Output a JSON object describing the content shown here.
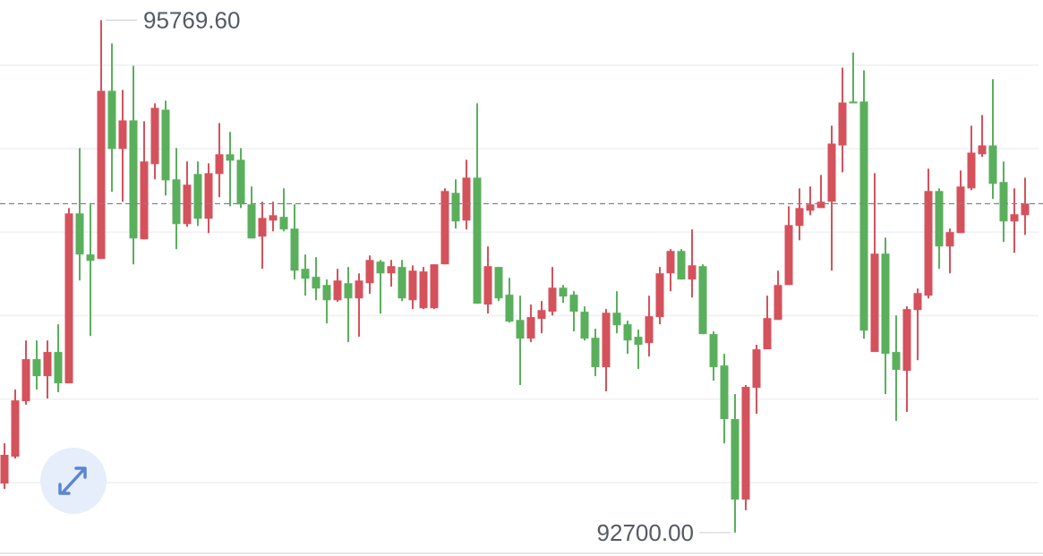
{
  "chart_data": {
    "type": "candlestick",
    "up_color": "#d4525c",
    "down_color": "#5aaf5c",
    "ylim": [
      92560,
      95890
    ],
    "gridlines": [
      93000,
      93500,
      94000,
      94500,
      95000,
      95500
    ],
    "current_price": 94670,
    "max_annotation": {
      "value": 95769.6,
      "label": "95769.60"
    },
    "min_annotation": {
      "value": 92700,
      "label": "92700.00"
    },
    "open": [
      92994,
      93155,
      93487,
      93739,
      93637,
      93782,
      93594,
      94612,
      94366,
      94339,
      95346,
      94998,
      95169,
      94457,
      94907,
      95233,
      94816,
      94548,
      94848,
      94580,
      94848,
      94966,
      94933,
      94666,
      94473,
      94569,
      94591,
      94521,
      94280,
      94232,
      94183,
      94092,
      94194,
      94103,
      94194,
      94323,
      94253,
      94291,
      94092,
      94044,
      94044,
      94307,
      94735,
      94569,
      94826,
      94066,
      94291,
      94125,
      93974,
      93862,
      93980,
      94023,
      94167,
      94125,
      94023,
      93867,
      93691,
      94017,
      93948,
      93873,
      93835,
      93991,
      94253,
      94387,
      94216,
      94296,
      93889,
      93701,
      93380,
      92898,
      93567,
      93798,
      93974,
      94183,
      94537,
      94628,
      94644,
      94682,
      95019,
      95282,
      95282,
      93782,
      94371,
      93782,
      93669,
      94033,
      94119,
      94746,
      94414,
      94494,
      94762,
      94966,
      95019,
      94800,
      94564,
      94601
    ],
    "high": [
      93235,
      93557,
      93851,
      93851,
      93851,
      93948,
      94644,
      95003,
      94666,
      95769.6,
      95630,
      95351,
      95496,
      95164,
      95271,
      95287,
      95003,
      94923,
      94923,
      94912,
      95153,
      95100,
      95003,
      94773,
      94682,
      94682,
      94762,
      94666,
      94366,
      94350,
      94216,
      94280,
      94291,
      94253,
      94360,
      94333,
      94333,
      94333,
      94301,
      94291,
      94307,
      94762,
      94816,
      94933,
      95271,
      94414,
      94291,
      94226,
      94119,
      94066,
      94087,
      94291,
      94183,
      94146,
      94055,
      93921,
      94039,
      94146,
      93969,
      93916,
      94119,
      94291,
      94398,
      94398,
      94516,
      94307,
      93905,
      93771,
      93530,
      93584,
      93825,
      94119,
      94269,
      94655,
      94762,
      94773,
      94842,
      95137,
      95485,
      95576,
      95469,
      94853,
      94467,
      94001,
      94055,
      94162,
      94880,
      94762,
      94521,
      94869,
      95137,
      95201,
      95416,
      94923,
      94762,
      94826
    ],
    "low": [
      92962,
      93144,
      93466,
      93557,
      93503,
      93541,
      93594,
      94210,
      93878,
      94339,
      94741,
      94682,
      94307,
      94457,
      94816,
      94719,
      94398,
      94532,
      94537,
      94494,
      94709,
      94655,
      94644,
      94462,
      94280,
      94505,
      94505,
      94216,
      94119,
      94092,
      93953,
      94082,
      93841,
      93873,
      94130,
      94012,
      94173,
      94087,
      94039,
      94039,
      94039,
      94307,
      94521,
      94516,
      94071,
      94012,
      94087,
      93958,
      93584,
      93841,
      93894,
      94001,
      94076,
      93905,
      93851,
      93637,
      93546,
      93894,
      93771,
      93680,
      93755,
      93948,
      94146,
      94216,
      94108,
      93889,
      93610,
      93235,
      92700,
      92834,
      93412,
      93798,
      93974,
      94183,
      94451,
      94601,
      94644,
      94269,
      94858,
      95271,
      93862,
      93782,
      93530,
      93369,
      93423,
      93733,
      94103,
      94280,
      94253,
      94494,
      94751,
      94950,
      94698,
      94441,
      94376,
      94483
    ],
    "close": [
      93166,
      93492,
      93739,
      93637,
      93782,
      93594,
      94612,
      94366,
      94328,
      95346,
      94998,
      95169,
      94462,
      94923,
      95244,
      94810,
      94548,
      94784,
      94580,
      94853,
      94966,
      94928,
      94666,
      94462,
      94585,
      94601,
      94516,
      94269,
      94221,
      94162,
      94092,
      94210,
      94103,
      94210,
      94333,
      94253,
      94296,
      94103,
      94269,
      94264,
      94307,
      94746,
      94564,
      94826,
      94071,
      94296,
      94103,
      93964,
      93862,
      93991,
      94033,
      94167,
      94114,
      94023,
      93862,
      93691,
      94017,
      93942,
      93851,
      93825,
      93996,
      94253,
      94387,
      94216,
      94301,
      93889,
      93691,
      93380,
      92898,
      93573,
      93798,
      93985,
      94183,
      94542,
      94644,
      94666,
      94682,
      95030,
      95276,
      95271,
      93910,
      94371,
      93771,
      93675,
      94039,
      94135,
      94746,
      94414,
      94500,
      94773,
      94976,
      95019,
      94789,
      94564,
      94607,
      94671
    ]
  }
}
